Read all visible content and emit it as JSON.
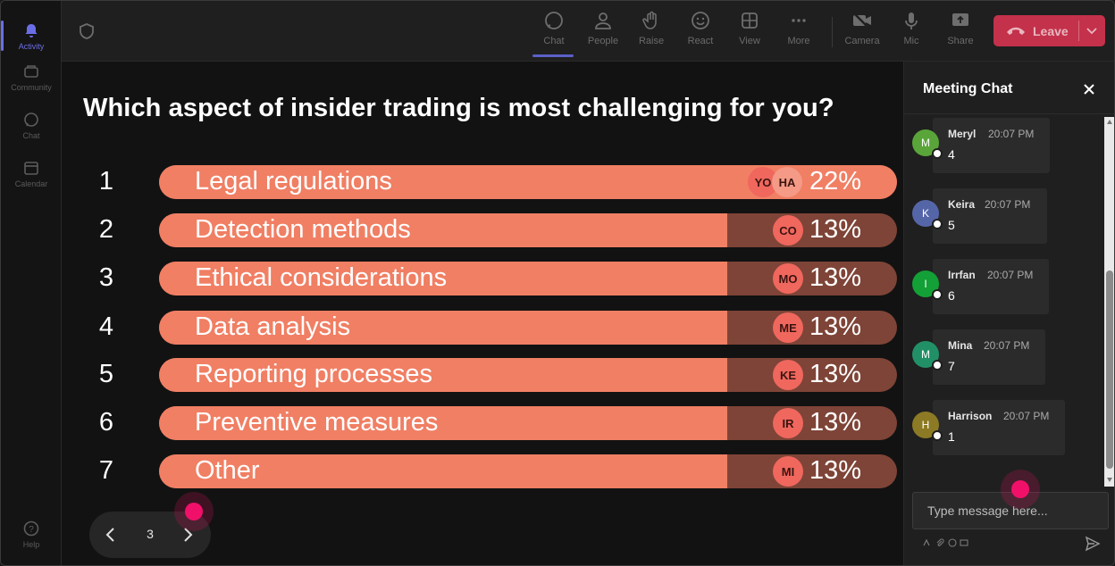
{
  "rail": {
    "items": [
      {
        "label": "Activity",
        "icon": "bell-icon"
      },
      {
        "label": "Community",
        "icon": "community-icon"
      },
      {
        "label": "Chat",
        "icon": "chat-icon"
      },
      {
        "label": "Calendar",
        "icon": "calendar-icon"
      }
    ],
    "help": {
      "label": "Help",
      "icon": "help-icon"
    }
  },
  "toolbar": {
    "items": [
      {
        "label": "Chat",
        "icon": "chat-icon"
      },
      {
        "label": "People",
        "icon": "people-icon"
      },
      {
        "label": "Raise",
        "icon": "raise-hand-icon"
      },
      {
        "label": "React",
        "icon": "smiley-icon"
      },
      {
        "label": "View",
        "icon": "grid-view-icon"
      },
      {
        "label": "More",
        "icon": "more-icon"
      },
      {
        "label": "Camera",
        "icon": "camera-off-icon"
      },
      {
        "label": "Mic",
        "icon": "mic-icon"
      },
      {
        "label": "Share",
        "icon": "share-icon"
      }
    ],
    "leave_label": "Leave",
    "leave_color": "#c4314b"
  },
  "poll": {
    "question": "Which aspect of insider trading is most challenging for you?",
    "options": [
      {
        "num": "1",
        "label": "Legal regulations",
        "percent": "22%",
        "fraction": 1.0,
        "voters": [
          "YO",
          "HA"
        ]
      },
      {
        "num": "2",
        "label": "Detection methods",
        "percent": "13%",
        "fraction": 0.77,
        "voters": [
          "CO"
        ]
      },
      {
        "num": "3",
        "label": "Ethical considerations",
        "percent": "13%",
        "fraction": 0.77,
        "voters": [
          "MO"
        ]
      },
      {
        "num": "4",
        "label": "Data analysis",
        "percent": "13%",
        "fraction": 0.77,
        "voters": [
          "ME"
        ]
      },
      {
        "num": "5",
        "label": "Reporting processes",
        "percent": "13%",
        "fraction": 0.77,
        "voters": [
          "KE"
        ]
      },
      {
        "num": "6",
        "label": "Preventive measures",
        "percent": "13%",
        "fraction": 0.77,
        "voters": [
          "IR"
        ]
      },
      {
        "num": "7",
        "label": "Other",
        "percent": "13%",
        "fraction": 0.77,
        "voters": [
          "MI"
        ]
      }
    ],
    "bar_color": "#f07f64",
    "track_color": "#7e4437"
  },
  "pager": {
    "page": "3"
  },
  "chat": {
    "title": "Meeting Chat",
    "messages": [
      {
        "initial": "M",
        "name": "Meryl",
        "time": "20:07 PM",
        "text": "4",
        "color": "#5aa53a"
      },
      {
        "initial": "K",
        "name": "Keira",
        "time": "20:07 PM",
        "text": "5",
        "color": "#5566a8"
      },
      {
        "initial": "I",
        "name": "Irrfan",
        "time": "20:07 PM",
        "text": "6",
        "color": "#13a036"
      },
      {
        "initial": "M",
        "name": "Mina",
        "time": "20:07 PM",
        "text": "7",
        "color": "#229067"
      },
      {
        "initial": "H",
        "name": "Harrison",
        "time": "20:07 PM",
        "text": "1",
        "color": "#8d7a25"
      }
    ],
    "input_placeholder": "Type message here..."
  }
}
